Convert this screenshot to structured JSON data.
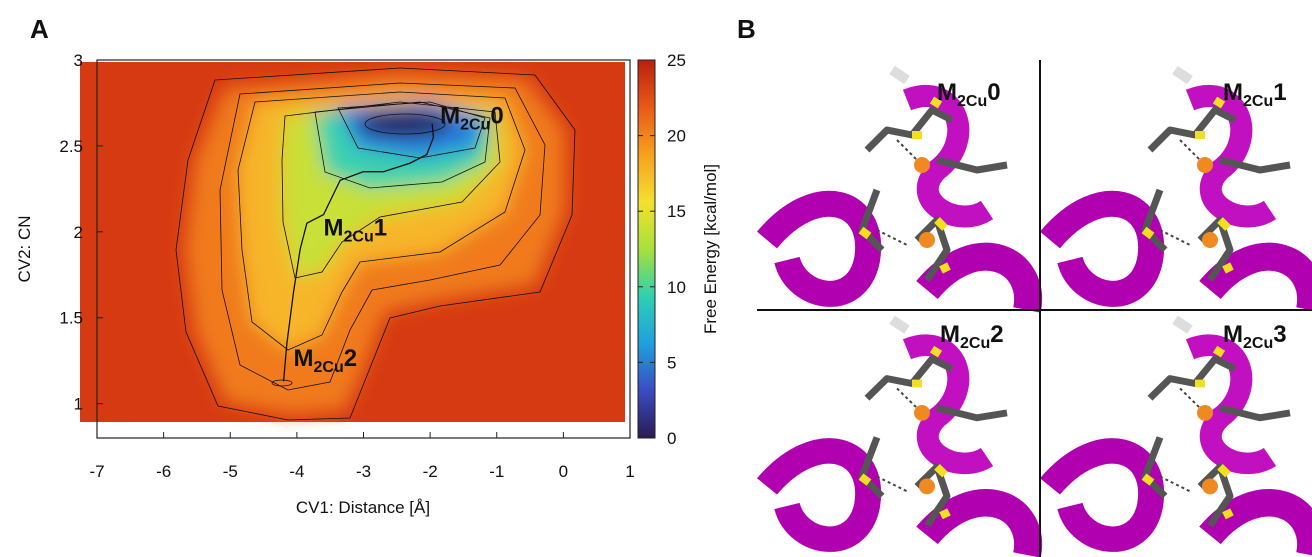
{
  "chart_data": {
    "type": "heatmap",
    "panel_label": "A",
    "xlabel": "CV1: Distance [Å]",
    "ylabel": "CV2: CN",
    "xlim": [
      -7,
      1
    ],
    "ylim": [
      0.8,
      3
    ],
    "xticks": [
      -7,
      -6,
      -5,
      -4,
      -3,
      -2,
      -1,
      0,
      1
    ],
    "yticks": [
      1,
      {
        "value": 1.5,
        "label": "1.5"
      },
      2,
      {
        "value": 2.5,
        "label": "2.5"
      },
      3
    ],
    "colorbar": {
      "label": "Free Energy [kcal/mol]",
      "lim": [
        0,
        25
      ],
      "ticks": [
        0,
        5,
        10,
        15,
        20,
        25
      ],
      "colors": [
        "#2a1a55",
        "#3b4cc0",
        "#1fa0e0",
        "#2fd0b0",
        "#a8e03a",
        "#f4e030",
        "#f7a020",
        "#e85a18",
        "#b8200e"
      ]
    },
    "path": {
      "x": [
        -4.2,
        -4.15,
        -4.05,
        -3.95,
        -3.85,
        -3.6,
        -3.35,
        -3.0,
        -2.7,
        -2.3,
        -2.05,
        -1.95,
        -1.97
      ],
      "y": [
        1.13,
        1.35,
        1.65,
        1.9,
        2.05,
        2.1,
        2.3,
        2.35,
        2.35,
        2.4,
        2.45,
        2.55,
        2.63
      ]
    },
    "annotations": [
      {
        "main": "M",
        "sub": "2Cu",
        "tail": "0",
        "x": -1.85,
        "y": 2.63
      },
      {
        "main": "M",
        "sub": "2Cu",
        "tail": "1",
        "x": -3.6,
        "y": 1.98
      },
      {
        "main": "M",
        "sub": "2Cu",
        "tail": "2",
        "x": -4.05,
        "y": 1.22
      }
    ]
  },
  "panel_b": {
    "label": "B",
    "structures": [
      {
        "main": "M",
        "sub": "2Cu",
        "tail": "0"
      },
      {
        "main": "M",
        "sub": "2Cu",
        "tail": "1"
      },
      {
        "main": "M",
        "sub": "2Cu",
        "tail": "2"
      },
      {
        "main": "M",
        "sub": "2Cu",
        "tail": "3"
      }
    ]
  }
}
